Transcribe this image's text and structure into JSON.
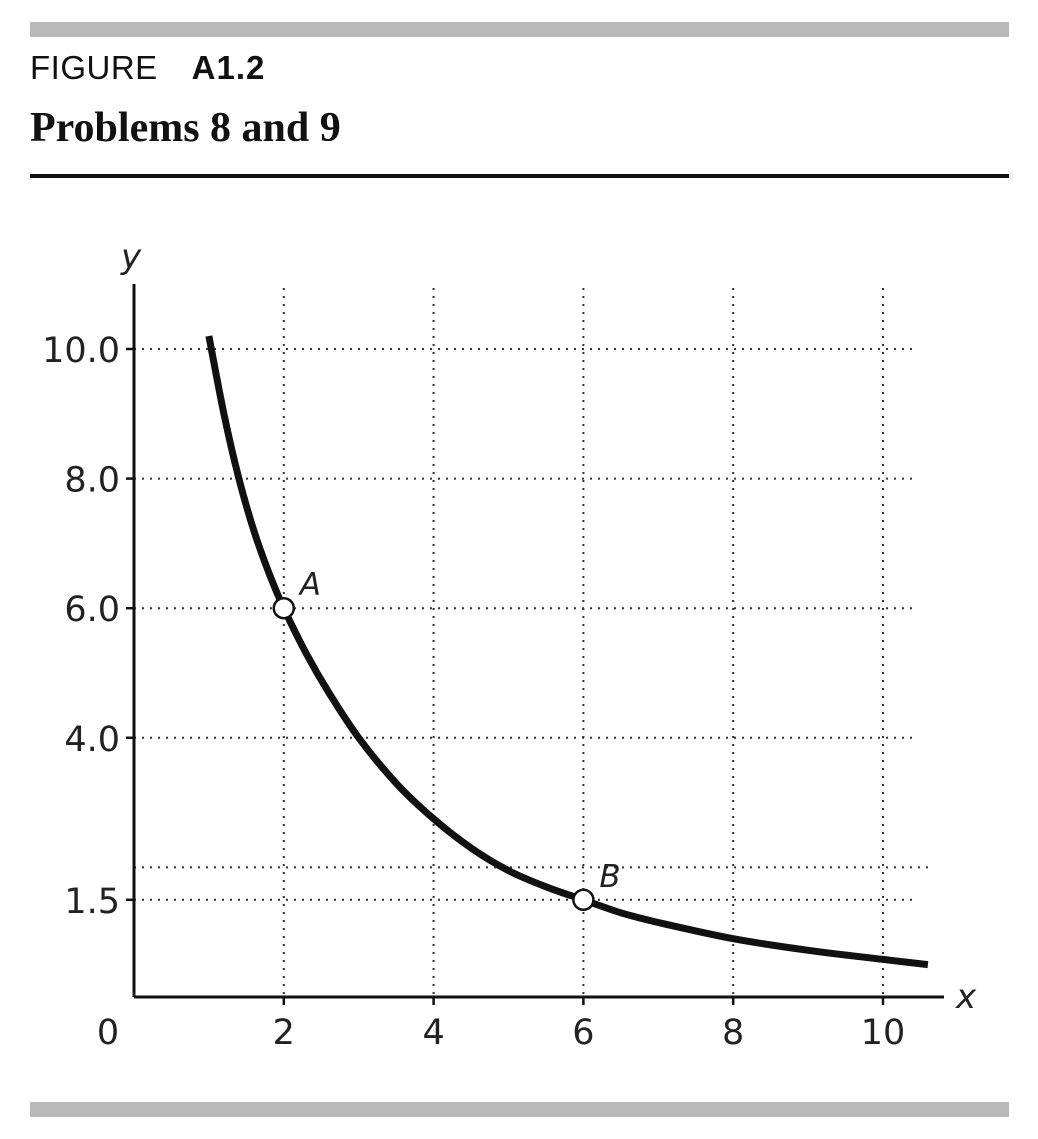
{
  "header": {
    "figure_label": "FIGURE",
    "figure_number": "A1.2",
    "title": "Problems 8 and 9"
  },
  "chart_data": {
    "type": "line",
    "title": "Problems 8 and 9",
    "xlabel": "x",
    "ylabel": "y",
    "xlim": [
      0,
      10.6
    ],
    "ylim": [
      0,
      11
    ],
    "x_ticks": [
      2,
      4,
      6,
      8,
      10
    ],
    "y_ticks": [
      {
        "value": 1.5,
        "label": "1.5"
      },
      {
        "value": 4.0,
        "label": "4.0"
      },
      {
        "value": 6.0,
        "label": "6.0"
      },
      {
        "value": 8.0,
        "label": "8.0"
      },
      {
        "value": 10.0,
        "label": "10.0"
      }
    ],
    "origin_label": "0",
    "extra_gridlines_y": [
      2.0
    ],
    "x_gridlines": [
      2,
      4,
      6,
      8,
      10
    ],
    "grid": true,
    "grid_style": "dotted",
    "series": [
      {
        "x": [
          1.0,
          1.2,
          1.4,
          1.6,
          1.8,
          2.0,
          2.3,
          2.6,
          3.0,
          3.5,
          4.0,
          4.5,
          5.0,
          5.5,
          6.0,
          6.5,
          7.0,
          8.0,
          9.0,
          10.0,
          10.6
        ],
        "y": [
          10.2,
          9.0,
          8.0,
          7.2,
          6.55,
          6.0,
          5.3,
          4.7,
          4.0,
          3.3,
          2.75,
          2.3,
          1.95,
          1.7,
          1.5,
          1.3,
          1.15,
          0.9,
          0.72,
          0.58,
          0.5
        ]
      }
    ],
    "points": [
      {
        "label": "A",
        "x": 2,
        "y": 6.0
      },
      {
        "label": "B",
        "x": 6,
        "y": 1.5
      }
    ],
    "line_color": "#111111"
  }
}
